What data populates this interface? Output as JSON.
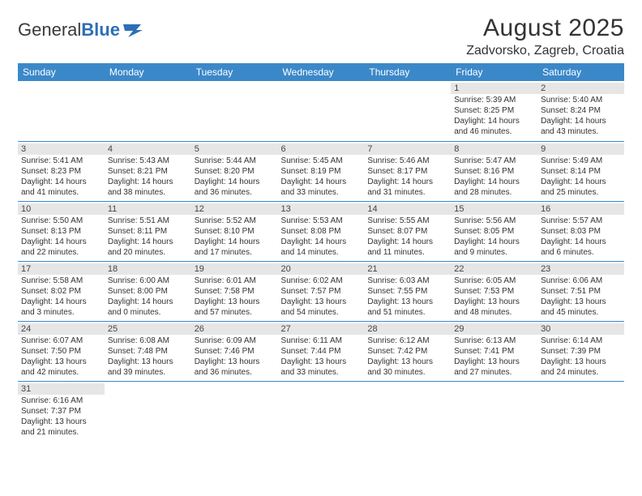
{
  "brand": {
    "part1": "General",
    "part2": "Blue"
  },
  "title": "August 2025",
  "location": "Zadvorsko, Zagreb, Croatia",
  "colors": {
    "header_bg": "#3b88c9",
    "header_fg": "#ffffff",
    "daynum_bg": "#e6e6e6",
    "rule": "#3b88c9",
    "text": "#333333",
    "page_bg": "#ffffff"
  },
  "day_headers": [
    "Sunday",
    "Monday",
    "Tuesday",
    "Wednesday",
    "Thursday",
    "Friday",
    "Saturday"
  ],
  "weeks": [
    [
      null,
      null,
      null,
      null,
      null,
      {
        "n": "1",
        "sr": "Sunrise: 5:39 AM",
        "ss": "Sunset: 8:25 PM",
        "d1": "Daylight: 14 hours",
        "d2": "and 46 minutes."
      },
      {
        "n": "2",
        "sr": "Sunrise: 5:40 AM",
        "ss": "Sunset: 8:24 PM",
        "d1": "Daylight: 14 hours",
        "d2": "and 43 minutes."
      }
    ],
    [
      {
        "n": "3",
        "sr": "Sunrise: 5:41 AM",
        "ss": "Sunset: 8:23 PM",
        "d1": "Daylight: 14 hours",
        "d2": "and 41 minutes."
      },
      {
        "n": "4",
        "sr": "Sunrise: 5:43 AM",
        "ss": "Sunset: 8:21 PM",
        "d1": "Daylight: 14 hours",
        "d2": "and 38 minutes."
      },
      {
        "n": "5",
        "sr": "Sunrise: 5:44 AM",
        "ss": "Sunset: 8:20 PM",
        "d1": "Daylight: 14 hours",
        "d2": "and 36 minutes."
      },
      {
        "n": "6",
        "sr": "Sunrise: 5:45 AM",
        "ss": "Sunset: 8:19 PM",
        "d1": "Daylight: 14 hours",
        "d2": "and 33 minutes."
      },
      {
        "n": "7",
        "sr": "Sunrise: 5:46 AM",
        "ss": "Sunset: 8:17 PM",
        "d1": "Daylight: 14 hours",
        "d2": "and 31 minutes."
      },
      {
        "n": "8",
        "sr": "Sunrise: 5:47 AM",
        "ss": "Sunset: 8:16 PM",
        "d1": "Daylight: 14 hours",
        "d2": "and 28 minutes."
      },
      {
        "n": "9",
        "sr": "Sunrise: 5:49 AM",
        "ss": "Sunset: 8:14 PM",
        "d1": "Daylight: 14 hours",
        "d2": "and 25 minutes."
      }
    ],
    [
      {
        "n": "10",
        "sr": "Sunrise: 5:50 AM",
        "ss": "Sunset: 8:13 PM",
        "d1": "Daylight: 14 hours",
        "d2": "and 22 minutes."
      },
      {
        "n": "11",
        "sr": "Sunrise: 5:51 AM",
        "ss": "Sunset: 8:11 PM",
        "d1": "Daylight: 14 hours",
        "d2": "and 20 minutes."
      },
      {
        "n": "12",
        "sr": "Sunrise: 5:52 AM",
        "ss": "Sunset: 8:10 PM",
        "d1": "Daylight: 14 hours",
        "d2": "and 17 minutes."
      },
      {
        "n": "13",
        "sr": "Sunrise: 5:53 AM",
        "ss": "Sunset: 8:08 PM",
        "d1": "Daylight: 14 hours",
        "d2": "and 14 minutes."
      },
      {
        "n": "14",
        "sr": "Sunrise: 5:55 AM",
        "ss": "Sunset: 8:07 PM",
        "d1": "Daylight: 14 hours",
        "d2": "and 11 minutes."
      },
      {
        "n": "15",
        "sr": "Sunrise: 5:56 AM",
        "ss": "Sunset: 8:05 PM",
        "d1": "Daylight: 14 hours",
        "d2": "and 9 minutes."
      },
      {
        "n": "16",
        "sr": "Sunrise: 5:57 AM",
        "ss": "Sunset: 8:03 PM",
        "d1": "Daylight: 14 hours",
        "d2": "and 6 minutes."
      }
    ],
    [
      {
        "n": "17",
        "sr": "Sunrise: 5:58 AM",
        "ss": "Sunset: 8:02 PM",
        "d1": "Daylight: 14 hours",
        "d2": "and 3 minutes."
      },
      {
        "n": "18",
        "sr": "Sunrise: 6:00 AM",
        "ss": "Sunset: 8:00 PM",
        "d1": "Daylight: 14 hours",
        "d2": "and 0 minutes."
      },
      {
        "n": "19",
        "sr": "Sunrise: 6:01 AM",
        "ss": "Sunset: 7:58 PM",
        "d1": "Daylight: 13 hours",
        "d2": "and 57 minutes."
      },
      {
        "n": "20",
        "sr": "Sunrise: 6:02 AM",
        "ss": "Sunset: 7:57 PM",
        "d1": "Daylight: 13 hours",
        "d2": "and 54 minutes."
      },
      {
        "n": "21",
        "sr": "Sunrise: 6:03 AM",
        "ss": "Sunset: 7:55 PM",
        "d1": "Daylight: 13 hours",
        "d2": "and 51 minutes."
      },
      {
        "n": "22",
        "sr": "Sunrise: 6:05 AM",
        "ss": "Sunset: 7:53 PM",
        "d1": "Daylight: 13 hours",
        "d2": "and 48 minutes."
      },
      {
        "n": "23",
        "sr": "Sunrise: 6:06 AM",
        "ss": "Sunset: 7:51 PM",
        "d1": "Daylight: 13 hours",
        "d2": "and 45 minutes."
      }
    ],
    [
      {
        "n": "24",
        "sr": "Sunrise: 6:07 AM",
        "ss": "Sunset: 7:50 PM",
        "d1": "Daylight: 13 hours",
        "d2": "and 42 minutes."
      },
      {
        "n": "25",
        "sr": "Sunrise: 6:08 AM",
        "ss": "Sunset: 7:48 PM",
        "d1": "Daylight: 13 hours",
        "d2": "and 39 minutes."
      },
      {
        "n": "26",
        "sr": "Sunrise: 6:09 AM",
        "ss": "Sunset: 7:46 PM",
        "d1": "Daylight: 13 hours",
        "d2": "and 36 minutes."
      },
      {
        "n": "27",
        "sr": "Sunrise: 6:11 AM",
        "ss": "Sunset: 7:44 PM",
        "d1": "Daylight: 13 hours",
        "d2": "and 33 minutes."
      },
      {
        "n": "28",
        "sr": "Sunrise: 6:12 AM",
        "ss": "Sunset: 7:42 PM",
        "d1": "Daylight: 13 hours",
        "d2": "and 30 minutes."
      },
      {
        "n": "29",
        "sr": "Sunrise: 6:13 AM",
        "ss": "Sunset: 7:41 PM",
        "d1": "Daylight: 13 hours",
        "d2": "and 27 minutes."
      },
      {
        "n": "30",
        "sr": "Sunrise: 6:14 AM",
        "ss": "Sunset: 7:39 PM",
        "d1": "Daylight: 13 hours",
        "d2": "and 24 minutes."
      }
    ],
    [
      {
        "n": "31",
        "sr": "Sunrise: 6:16 AM",
        "ss": "Sunset: 7:37 PM",
        "d1": "Daylight: 13 hours",
        "d2": "and 21 minutes."
      },
      null,
      null,
      null,
      null,
      null,
      null
    ]
  ]
}
